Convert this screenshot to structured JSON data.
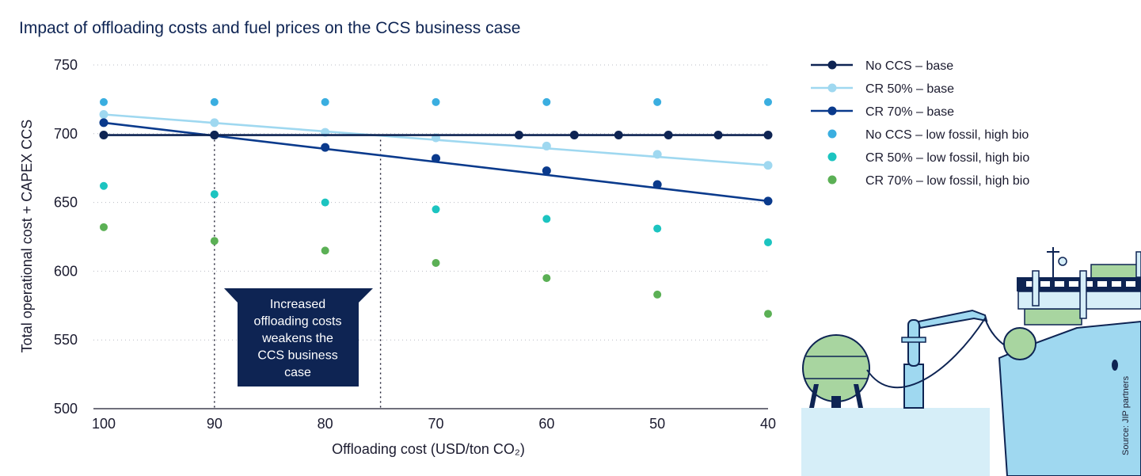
{
  "colors": {
    "no_ccs": "#0e2453",
    "cr50_base": "#9fd8f0",
    "cr70_base": "#0a3a8c",
    "no_ccs_low": "#3aaee0",
    "cr50_low": "#1cc4c0",
    "cr70_low": "#5bb055",
    "callout_bg": "#0e2453"
  },
  "chart_data": {
    "type": "line",
    "title": "Impact of offloading costs and fuel prices on the CCS business case",
    "xlabel": "Offloading cost (USD/ton CO₂)",
    "ylabel": "Total operational cost + CAPEX CCS",
    "xlim": [
      100,
      40
    ],
    "ylim": [
      500,
      750
    ],
    "x_ticks": [
      "100",
      "90",
      "80",
      "70",
      "60",
      "50",
      "40"
    ],
    "y_ticks": [
      "500",
      "550",
      "600",
      "650",
      "700",
      "750"
    ],
    "grid": "horizontal dotted",
    "legend_position": "right",
    "series": [
      {
        "name": "No CCS – base",
        "style": "line+markers",
        "line_x": [
          100,
          40
        ],
        "line_y": [
          699,
          699
        ],
        "x": [
          100,
          90,
          62.5,
          57.5,
          53.5,
          49,
          44.5,
          40
        ],
        "values": [
          699,
          699,
          699,
          699,
          699,
          699,
          699,
          699
        ]
      },
      {
        "name": "CR 50% – base",
        "style": "line+markers",
        "line_x": [
          100,
          40
        ],
        "line_y": [
          714,
          677
        ],
        "x": [
          100,
          90,
          80,
          70,
          60,
          50,
          40
        ],
        "values": [
          714,
          708,
          701,
          697,
          691,
          685,
          677
        ]
      },
      {
        "name": "CR 70% – base",
        "style": "line+markers",
        "line_x": [
          100,
          40
        ],
        "line_y": [
          708,
          651
        ],
        "x": [
          100,
          90,
          80,
          70,
          60,
          50,
          40
        ],
        "values": [
          708,
          699,
          690,
          682,
          673,
          663,
          651
        ]
      },
      {
        "name": "No CCS – low fossil, high bio",
        "style": "markers",
        "x": [
          100,
          90,
          80,
          70,
          60,
          50,
          40
        ],
        "values": [
          723,
          723,
          723,
          723,
          723,
          723,
          723
        ]
      },
      {
        "name": "CR 50% – low fossil, high bio",
        "style": "markers",
        "x": [
          100,
          90,
          80,
          70,
          60,
          50,
          40
        ],
        "values": [
          662,
          656,
          650,
          645,
          638,
          631,
          621
        ]
      },
      {
        "name": "CR 70% – low fossil, high bio",
        "style": "markers",
        "x": [
          100,
          90,
          80,
          70,
          60,
          50,
          40
        ],
        "values": [
          632,
          622,
          615,
          606,
          595,
          583,
          569
        ]
      }
    ],
    "reference_lines_x": [
      90,
      75
    ],
    "annotation": {
      "lines": [
        "Increased",
        "offloading costs",
        "weakens the",
        "CCS business",
        "case"
      ]
    },
    "source_note": "Source: JIP partners"
  }
}
